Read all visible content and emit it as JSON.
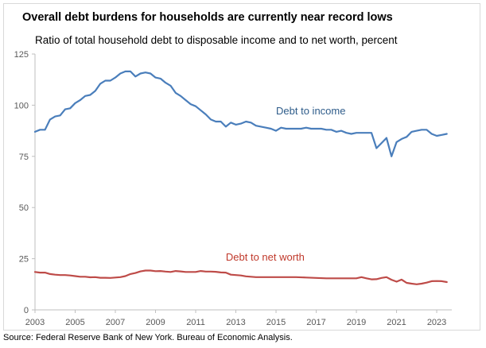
{
  "chart_data": {
    "type": "line",
    "title": "Overall debt burdens for households are currently near record lows",
    "subtitle": "Ratio of total household debt to disposable income and to net worth, percent",
    "source": "Source: Federal Reserve Bank of New York. Bureau of Economic Analysis.",
    "xlim": [
      2003,
      2023.75
    ],
    "ylim": [
      0,
      125
    ],
    "y_ticks": [
      0,
      25,
      50,
      75,
      100,
      125
    ],
    "x_ticks": [
      2003,
      2005,
      2007,
      2009,
      2011,
      2013,
      2015,
      2017,
      2019,
      2021,
      2023
    ],
    "x_tick_labels": [
      "2003",
      "2005",
      "2007",
      "2009",
      "2011",
      "2013",
      "2015",
      "2017",
      "2019",
      "2021",
      "2023"
    ],
    "y_tick_labels": [
      "0",
      "25",
      "50",
      "75",
      "100",
      "125"
    ],
    "grid": false,
    "legend": "none (direct labels)",
    "series": [
      {
        "name": "Debt to income",
        "color": "#4a7ebb",
        "x": [
          2003.0,
          2003.25,
          2003.5,
          2003.75,
          2004.0,
          2004.25,
          2004.5,
          2004.75,
          2005.0,
          2005.25,
          2005.5,
          2005.75,
          2006.0,
          2006.25,
          2006.5,
          2006.75,
          2007.0,
          2007.25,
          2007.5,
          2007.75,
          2008.0,
          2008.25,
          2008.5,
          2008.75,
          2009.0,
          2009.25,
          2009.5,
          2009.75,
          2010.0,
          2010.25,
          2010.5,
          2010.75,
          2011.0,
          2011.25,
          2011.5,
          2011.75,
          2012.0,
          2012.25,
          2012.5,
          2012.75,
          2013.0,
          2013.25,
          2013.5,
          2013.75,
          2014.0,
          2014.25,
          2014.5,
          2014.75,
          2015.0,
          2015.25,
          2015.5,
          2015.75,
          2016.0,
          2016.25,
          2016.5,
          2016.75,
          2017.0,
          2017.25,
          2017.5,
          2017.75,
          2018.0,
          2018.25,
          2018.5,
          2018.75,
          2019.0,
          2019.25,
          2019.5,
          2019.75,
          2020.0,
          2020.25,
          2020.5,
          2020.75,
          2021.0,
          2021.25,
          2021.5,
          2021.75,
          2022.0,
          2022.25,
          2022.5,
          2022.75,
          2023.0,
          2023.25,
          2023.5
        ],
        "values": [
          87.0,
          88.0,
          88.0,
          93.0,
          94.5,
          95.0,
          98.0,
          98.5,
          101.0,
          102.5,
          104.5,
          105.0,
          107.0,
          110.5,
          112.0,
          112.0,
          113.5,
          115.5,
          116.5,
          116.5,
          114.0,
          115.5,
          116.0,
          115.5,
          113.5,
          113.0,
          111.0,
          109.5,
          106.0,
          104.5,
          102.5,
          100.5,
          99.5,
          97.5,
          95.5,
          93.0,
          92.0,
          92.0,
          89.5,
          91.5,
          90.5,
          91.0,
          92.0,
          91.5,
          90.0,
          89.5,
          89.0,
          88.5,
          87.5,
          89.0,
          88.5,
          88.5,
          88.5,
          88.5,
          89.0,
          88.5,
          88.5,
          88.5,
          88.0,
          88.0,
          87.0,
          87.5,
          86.5,
          86.0,
          86.5,
          86.5,
          86.5,
          86.5,
          79.0,
          81.5,
          84.0,
          75.0,
          82.0,
          83.5,
          84.5,
          87.0,
          87.5,
          88.0,
          88.0,
          86.0,
          85.0,
          85.5,
          86.0
        ]
      },
      {
        "name": "Debt to net worth",
        "color": "#be4b48",
        "x": [
          2003.0,
          2003.25,
          2003.5,
          2003.75,
          2004.0,
          2004.25,
          2004.5,
          2004.75,
          2005.0,
          2005.25,
          2005.5,
          2005.75,
          2006.0,
          2006.25,
          2006.5,
          2006.75,
          2007.0,
          2007.25,
          2007.5,
          2007.75,
          2008.0,
          2008.25,
          2008.5,
          2008.75,
          2009.0,
          2009.25,
          2009.5,
          2009.75,
          2010.0,
          2010.25,
          2010.5,
          2010.75,
          2011.0,
          2011.25,
          2011.5,
          2011.75,
          2012.0,
          2012.25,
          2012.5,
          2012.75,
          2013.0,
          2013.25,
          2013.5,
          2013.75,
          2014.0,
          2014.5,
          2015.0,
          2015.5,
          2016.0,
          2016.5,
          2017.0,
          2017.5,
          2018.0,
          2018.5,
          2019.0,
          2019.25,
          2019.5,
          2019.75,
          2020.0,
          2020.25,
          2020.5,
          2020.75,
          2021.0,
          2021.25,
          2021.5,
          2021.75,
          2022.0,
          2022.25,
          2022.5,
          2022.75,
          2023.0,
          2023.25,
          2023.5
        ],
        "values": [
          18.5,
          18.2,
          18.2,
          17.5,
          17.2,
          17.0,
          17.0,
          16.8,
          16.5,
          16.2,
          16.2,
          15.9,
          16.0,
          15.7,
          15.7,
          15.6,
          15.8,
          16.0,
          16.5,
          17.5,
          18.0,
          18.8,
          19.2,
          19.2,
          18.9,
          19.0,
          18.7,
          18.5,
          19.0,
          18.8,
          18.5,
          18.5,
          18.5,
          19.0,
          18.7,
          18.7,
          18.6,
          18.3,
          18.2,
          17.2,
          17.0,
          16.8,
          16.4,
          16.2,
          16.0,
          16.0,
          16.0,
          16.0,
          16.0,
          15.8,
          15.6,
          15.4,
          15.4,
          15.4,
          15.4,
          16.0,
          15.4,
          14.9,
          15.0,
          15.6,
          16.0,
          14.7,
          13.8,
          14.8,
          13.2,
          12.8,
          12.5,
          12.8,
          13.3,
          14.0,
          14.1,
          14.0,
          13.6
        ]
      }
    ],
    "annotations": [
      {
        "text": "Debt to income",
        "x": 2015.0,
        "y": 95.5,
        "color": "#2e5c8a"
      },
      {
        "text": "Debt to net worth",
        "x": 2012.5,
        "y": 24.0,
        "color": "#c0392b"
      }
    ]
  }
}
